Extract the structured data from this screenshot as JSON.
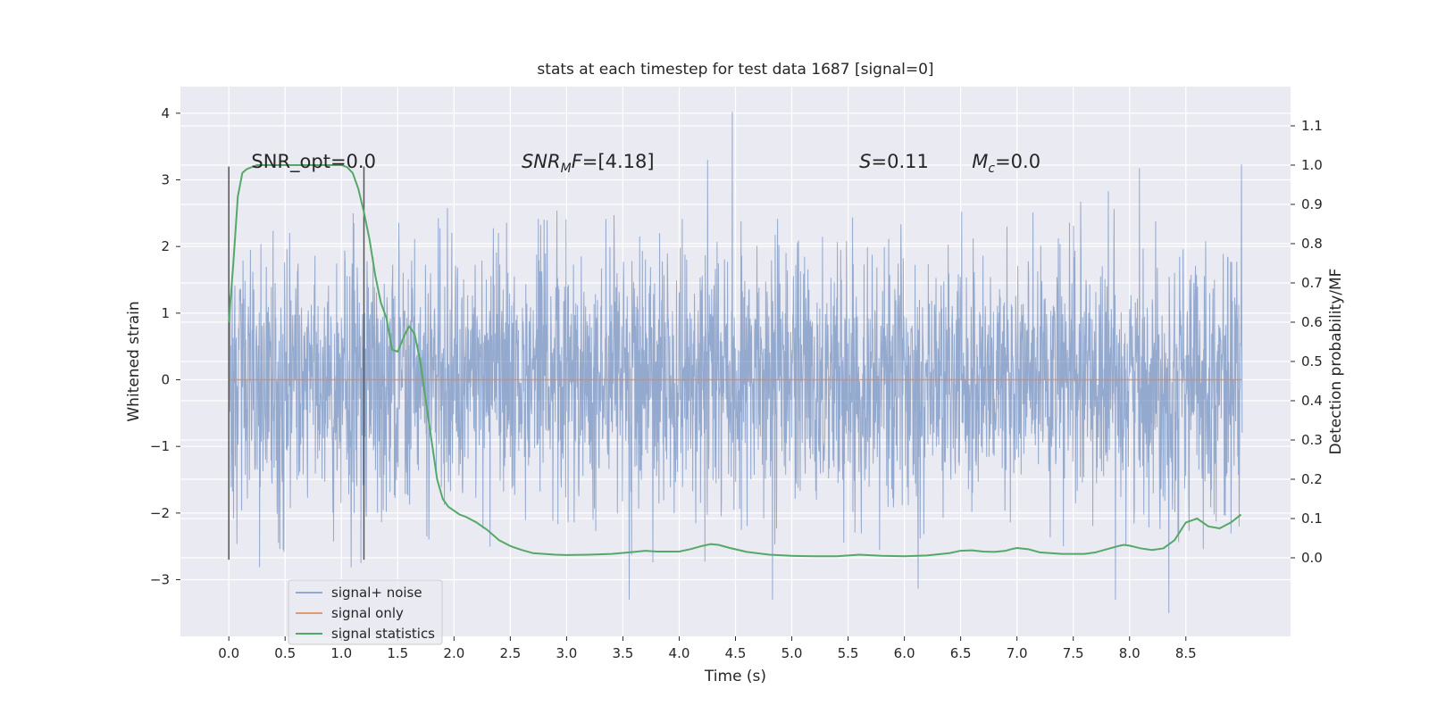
{
  "chart_data": {
    "type": "line",
    "title": "stats at each timestep for test data 1687 [signal=0]",
    "xlabel": "Time (s)",
    "ylabel": "Whitened strain",
    "ylabel_right": "Detection probability/MF",
    "xlim": [
      -0.43,
      9.43
    ],
    "ylim": [
      -3.85,
      4.4
    ],
    "ylim_right": [
      -0.2,
      1.2
    ],
    "xticks": [
      0.0,
      0.5,
      1.0,
      1.5,
      2.0,
      2.5,
      3.0,
      3.5,
      4.0,
      4.5,
      5.0,
      5.5,
      6.0,
      6.5,
      7.0,
      7.5,
      8.0,
      8.5
    ],
    "xtick_labels": [
      "0.0",
      "0.5",
      "1.0",
      "1.5",
      "2.0",
      "2.5",
      "3.0",
      "3.5",
      "4.0",
      "4.5",
      "5.0",
      "5.5",
      "6.0",
      "6.5",
      "7.0",
      "7.5",
      "8.0",
      "8.5"
    ],
    "yticks": [
      -3,
      -2,
      -1,
      0,
      1,
      2,
      3,
      4
    ],
    "ytick_labels": [
      "−3",
      "−2",
      "−1",
      "0",
      "1",
      "2",
      "3",
      "4"
    ],
    "yticks_right": [
      0.0,
      0.1,
      0.2,
      0.3,
      0.4,
      0.5,
      0.6,
      0.7,
      0.8,
      0.9,
      1.0,
      1.1
    ],
    "ytick_labels_right": [
      "0.0",
      "0.1",
      "0.2",
      "0.3",
      "0.4",
      "0.5",
      "0.6",
      "0.7",
      "0.8",
      "0.9",
      "1.0",
      "1.1"
    ],
    "grid": true,
    "legend_position": "lower-left",
    "series": [
      {
        "name": "signal+ noise",
        "color": "#4c72b0",
        "style": "noise",
        "x_range": [
          0.0,
          9.0
        ],
        "sigma": 0.95,
        "peak": 4.02,
        "peak_time": 4.47,
        "min": -3.5,
        "min_time": 8.35
      },
      {
        "name": "signal only",
        "color": "#dd8452",
        "x": [
          0.0,
          9.0
        ],
        "y": [
          0.0,
          0.0
        ]
      },
      {
        "name": "signal statistics",
        "color": "#55a868",
        "axis": "right",
        "x": [
          0.0,
          0.04,
          0.08,
          0.12,
          0.16,
          0.25,
          0.5,
          0.75,
          1.0,
          1.05,
          1.1,
          1.15,
          1.2,
          1.25,
          1.3,
          1.35,
          1.4,
          1.45,
          1.5,
          1.55,
          1.6,
          1.65,
          1.7,
          1.75,
          1.8,
          1.85,
          1.9,
          1.95,
          2.0,
          2.05,
          2.1,
          2.2,
          2.3,
          2.4,
          2.5,
          2.6,
          2.7,
          2.8,
          2.9,
          3.0,
          3.2,
          3.4,
          3.6,
          3.7,
          3.8,
          4.0,
          4.1,
          4.2,
          4.28,
          4.35,
          4.45,
          4.6,
          4.8,
          5.0,
          5.2,
          5.4,
          5.6,
          5.8,
          6.0,
          6.2,
          6.4,
          6.5,
          6.6,
          6.7,
          6.8,
          6.9,
          6.95,
          7.0,
          7.1,
          7.2,
          7.4,
          7.6,
          7.7,
          7.8,
          7.9,
          7.95,
          8.0,
          8.1,
          8.2,
          8.3,
          8.4,
          8.5,
          8.6,
          8.7,
          8.8,
          8.9,
          8.99
        ],
        "y": [
          0.6,
          0.75,
          0.92,
          0.98,
          0.99,
          1.0,
          1.0,
          1.0,
          1.0,
          0.995,
          0.98,
          0.94,
          0.88,
          0.81,
          0.72,
          0.65,
          0.61,
          0.53,
          0.525,
          0.56,
          0.59,
          0.57,
          0.5,
          0.4,
          0.3,
          0.2,
          0.15,
          0.13,
          0.12,
          0.11,
          0.105,
          0.09,
          0.07,
          0.045,
          0.03,
          0.02,
          0.012,
          0.01,
          0.008,
          0.007,
          0.008,
          0.01,
          0.015,
          0.018,
          0.016,
          0.016,
          0.022,
          0.03,
          0.035,
          0.033,
          0.025,
          0.015,
          0.008,
          0.005,
          0.004,
          0.004,
          0.008,
          0.005,
          0.004,
          0.006,
          0.012,
          0.018,
          0.019,
          0.016,
          0.015,
          0.018,
          0.022,
          0.025,
          0.022,
          0.014,
          0.01,
          0.01,
          0.014,
          0.022,
          0.03,
          0.033,
          0.031,
          0.024,
          0.02,
          0.024,
          0.045,
          0.09,
          0.1,
          0.08,
          0.075,
          0.09,
          0.11
        ]
      }
    ],
    "vlines": [
      {
        "x": 0.0,
        "y0": -2.7,
        "y1": 3.2,
        "color": "#555555"
      },
      {
        "x": 1.2,
        "y0": -2.7,
        "y1": 3.2,
        "color": "#555555"
      }
    ],
    "annotations": [
      {
        "text": "SNR_opt=0.0",
        "x": 0.2,
        "y": 3.18
      },
      {
        "text": "SNR_MF=[4.18]",
        "x": 2.6,
        "y": 3.18,
        "math": true
      },
      {
        "text": "S=0.11",
        "x": 5.6,
        "y": 3.18,
        "math": true
      },
      {
        "text": "M_c=0.0",
        "x": 6.6,
        "y": 3.18,
        "math": true
      }
    ]
  }
}
